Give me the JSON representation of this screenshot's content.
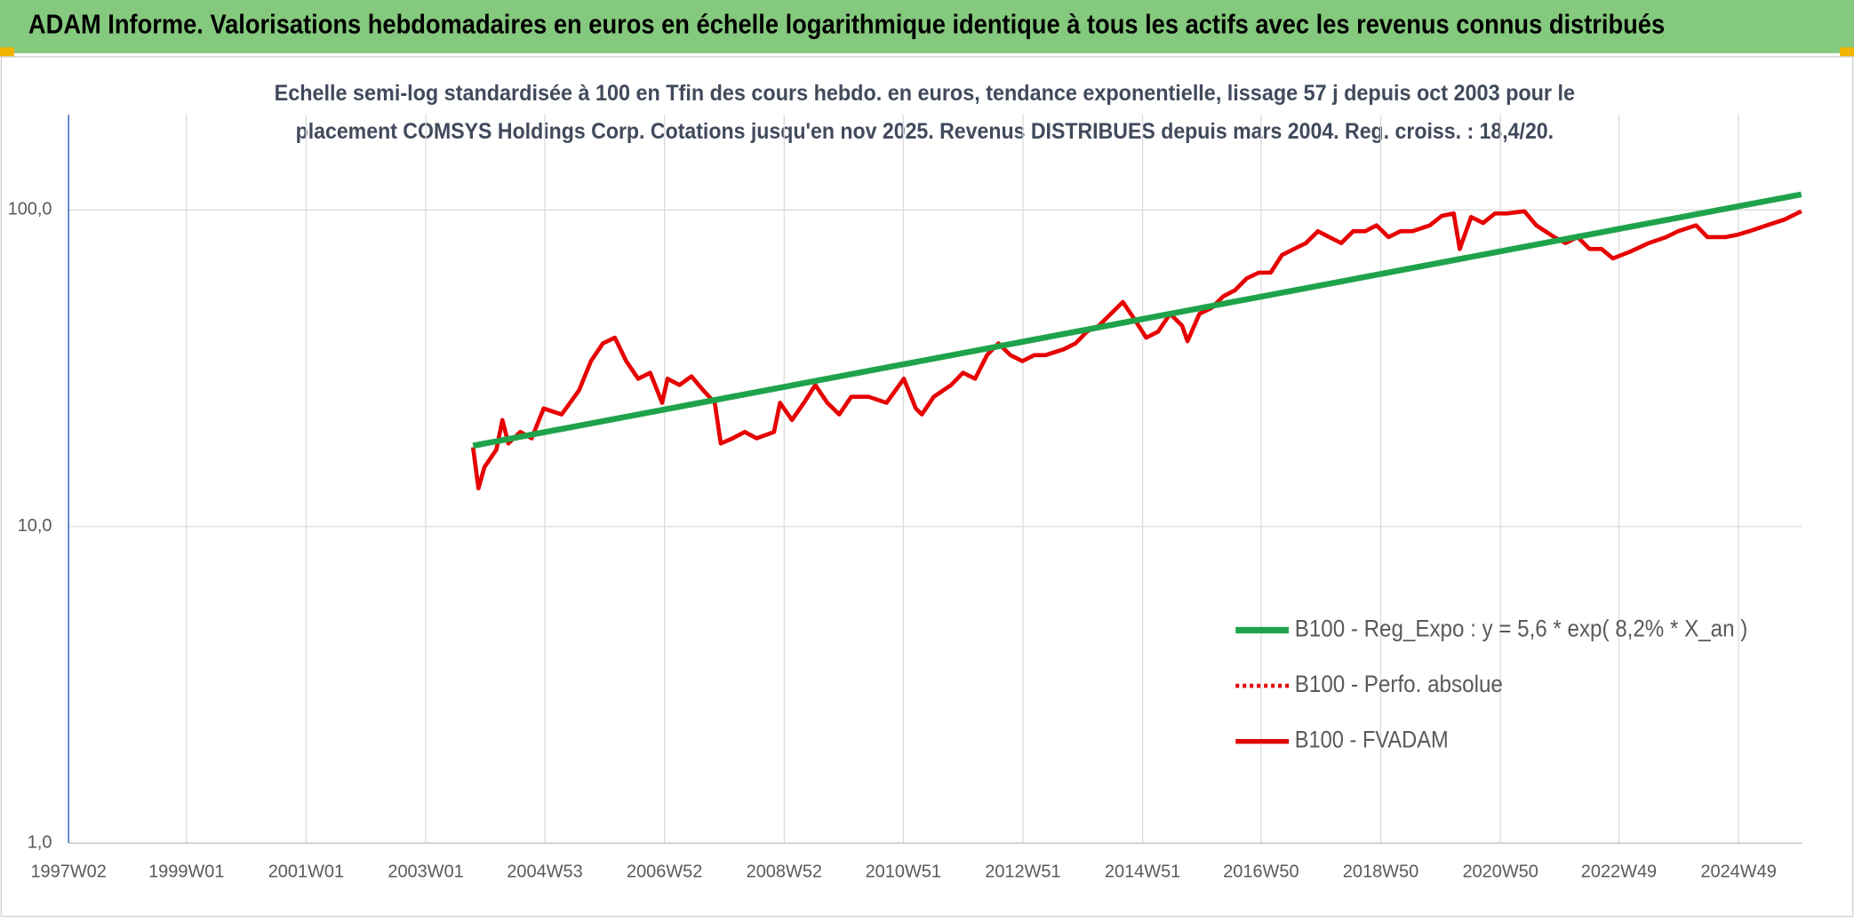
{
  "chart_data": {
    "type": "line",
    "header": "ADAM Informe. Valorisations hebdomadaires en euros en échelle logarithmique identique à tous les actifs avec les revenus connus distribués",
    "subtitle": [
      "Echelle semi-log standardisée à 100 en Tfin des cours hebdo. en euros, tendance exponentielle, lissage 57 j depuis oct 2003 pour le",
      "placement COMSYS Holdings Corp. Cotations jusqu'en nov 2025. Revenus DISTRIBUES depuis mars 2004. Reg. croiss. : 18,4/20."
    ],
    "log_scale": true,
    "grid": true,
    "legend": "right",
    "xlim": [
      1997.03,
      2026.0
    ],
    "xticks": [
      {
        "value": 1997.03,
        "label": "1997W02"
      },
      {
        "value": 1999.0,
        "label": "1999W01"
      },
      {
        "value": 2001.0,
        "label": "2001W01"
      },
      {
        "value": 2003.0,
        "label": "2003W01"
      },
      {
        "value": 2004.99,
        "label": "2004W53"
      },
      {
        "value": 2006.99,
        "label": "2006W52"
      },
      {
        "value": 2008.99,
        "label": "2008W52"
      },
      {
        "value": 2010.98,
        "label": "2010W51"
      },
      {
        "value": 2012.98,
        "label": "2012W51"
      },
      {
        "value": 2014.98,
        "label": "2014W51"
      },
      {
        "value": 2016.96,
        "label": "2016W50"
      },
      {
        "value": 2018.96,
        "label": "2018W50"
      },
      {
        "value": 2020.96,
        "label": "2020W50"
      },
      {
        "value": 2022.94,
        "label": "2022W49"
      },
      {
        "value": 2024.94,
        "label": "2024W49"
      }
    ],
    "ylim": [
      1,
      200
    ],
    "yticks": [
      {
        "value": 1,
        "label": "1,0"
      },
      {
        "value": 10,
        "label": "10,0"
      },
      {
        "value": 100,
        "label": "100,0"
      }
    ],
    "series": [
      {
        "name": "B100 - Reg_Expo : y = 5,6 * exp( 8,2% *  X_an )",
        "color": "#1fa34a",
        "style": "solid",
        "width": 5,
        "x": [
          2003.79,
          2025.99
        ],
        "values": [
          18.0,
          112.0
        ]
      },
      {
        "name": "B100 - Perfo. absolue",
        "color": "#e60000",
        "style": "dotted",
        "width": 3
      },
      {
        "name": "B100 - FVADAM",
        "color": "#e60000",
        "style": "solid",
        "width": 3.5,
        "x": [
          2003.79,
          2003.88,
          2003.98,
          2004.18,
          2004.28,
          2004.38,
          2004.58,
          2004.77,
          2004.97,
          2005.27,
          2005.56,
          2005.76,
          2005.96,
          2006.16,
          2006.35,
          2006.55,
          2006.75,
          2006.95,
          2007.04,
          2007.24,
          2007.44,
          2007.64,
          2007.83,
          2007.93,
          2008.13,
          2008.33,
          2008.53,
          2008.82,
          2008.92,
          2009.12,
          2009.32,
          2009.51,
          2009.71,
          2009.91,
          2010.11,
          2010.4,
          2010.7,
          2010.99,
          2011.19,
          2011.29,
          2011.49,
          2011.78,
          2011.98,
          2012.18,
          2012.38,
          2012.57,
          2012.77,
          2012.97,
          2013.17,
          2013.36,
          2013.66,
          2013.86,
          2014.05,
          2014.25,
          2014.45,
          2014.65,
          2014.85,
          2015.04,
          2015.24,
          2015.44,
          2015.64,
          2015.73,
          2015.93,
          2016.13,
          2016.33,
          2016.52,
          2016.72,
          2016.92,
          2017.12,
          2017.31,
          2017.51,
          2017.71,
          2017.91,
          2018.1,
          2018.3,
          2018.5,
          2018.7,
          2018.89,
          2019.09,
          2019.29,
          2019.49,
          2019.78,
          2019.98,
          2020.18,
          2020.28,
          2020.47,
          2020.67,
          2020.87,
          2021.07,
          2021.36,
          2021.56,
          2021.86,
          2022.05,
          2022.25,
          2022.45,
          2022.65,
          2022.84,
          2023.14,
          2023.44,
          2023.73,
          2023.93,
          2024.23,
          2024.42,
          2024.72,
          2024.92,
          2025.12,
          2025.41,
          2025.71,
          2025.99
        ],
        "values": [
          17.8,
          13.2,
          15.4,
          17.5,
          21.7,
          18.3,
          19.9,
          19.0,
          23.6,
          22.6,
          26.9,
          33.3,
          37.9,
          39.5,
          33.3,
          29.3,
          30.6,
          24.6,
          29.3,
          28.0,
          29.8,
          26.9,
          24.6,
          18.3,
          19.0,
          19.9,
          19.0,
          19.9,
          24.6,
          21.7,
          24.6,
          28.0,
          24.6,
          22.6,
          25.7,
          25.7,
          24.6,
          29.3,
          23.6,
          22.6,
          25.7,
          28.0,
          30.6,
          29.3,
          34.8,
          37.9,
          34.8,
          33.3,
          34.8,
          34.8,
          36.3,
          37.9,
          41.3,
          43.1,
          47.0,
          51.2,
          45.0,
          39.5,
          41.3,
          47.0,
          43.1,
          38.5,
          47.0,
          49.0,
          53.4,
          55.7,
          60.8,
          63.4,
          63.4,
          72.1,
          75.3,
          78.6,
          85.7,
          82.1,
          78.6,
          85.7,
          85.7,
          89.4,
          82.1,
          85.7,
          85.7,
          89.4,
          95.8,
          97.5,
          75.3,
          95.0,
          91.0,
          97.5,
          97.5,
          99.1,
          89.4,
          82.1,
          78.6,
          82.1,
          75.3,
          75.3,
          70.3,
          74.0,
          78.6,
          82.1,
          85.7,
          89.4,
          82.1,
          82.1,
          83.5,
          85.7,
          89.4,
          93.3,
          99.1
        ]
      }
    ]
  }
}
